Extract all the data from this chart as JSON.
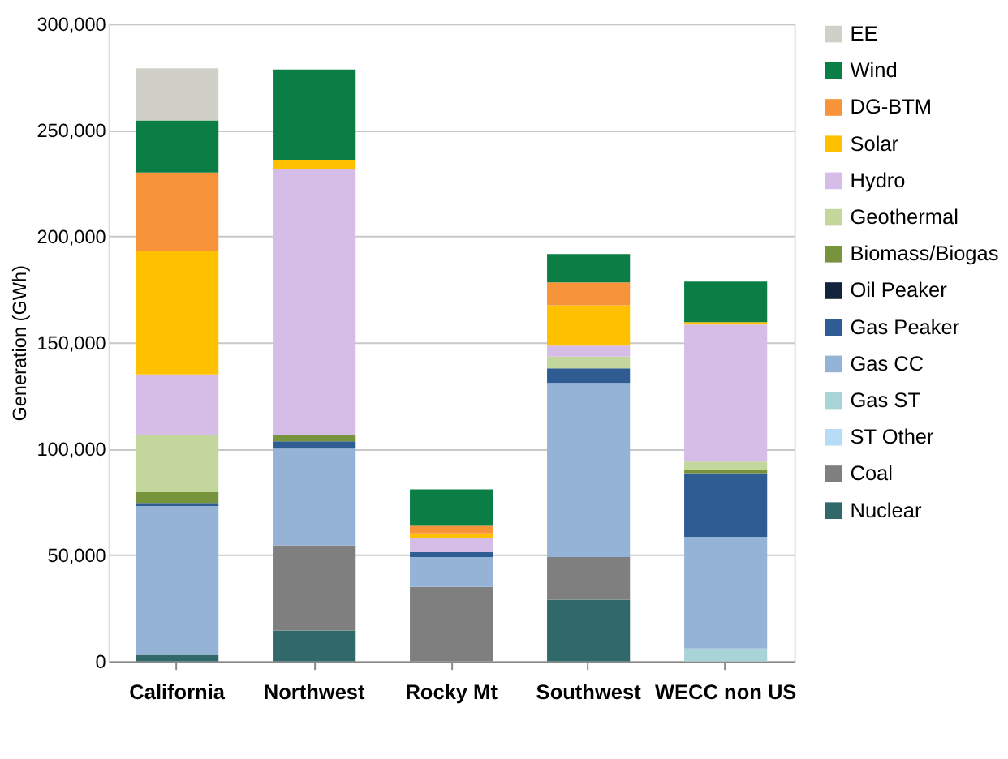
{
  "chart_data": {
    "type": "bar",
    "stacked": true,
    "ylabel": "Generation (GWh)",
    "categories": [
      "California",
      "Northwest",
      "Rocky Mt",
      "Southwest",
      "WECC non US"
    ],
    "ylim": [
      0,
      300000
    ],
    "yticks": [
      0,
      {
        "value": 50000,
        "label": "50,000"
      },
      {
        "value": 100000,
        "label": "100,000"
      },
      {
        "value": 150000,
        "label": "150,000"
      },
      {
        "value": 200000,
        "label": "200,000"
      },
      {
        "value": 250000,
        "label": "250,000"
      },
      {
        "value": 300000,
        "label": "300,000"
      }
    ],
    "grid": "y",
    "legend": "right",
    "series": [
      {
        "name": "Nuclear",
        "color": "#31686a",
        "values": [
          3000,
          14500,
          0,
          29000,
          0
        ]
      },
      {
        "name": "Coal",
        "color": "#7f7f7f",
        "values": [
          0,
          40000,
          35000,
          20000,
          0
        ]
      },
      {
        "name": "ST Other",
        "color": "#b7dcf5",
        "values": [
          0,
          0,
          0,
          0,
          0
        ]
      },
      {
        "name": "Gas ST",
        "color": "#a8d4d8",
        "values": [
          0,
          0,
          0,
          0,
          6000
        ]
      },
      {
        "name": "Gas CC",
        "color": "#95b3d7",
        "values": [
          70000,
          45500,
          14000,
          82000,
          52500
        ]
      },
      {
        "name": "Gas Peaker",
        "color": "#2f5c93",
        "values": [
          1500,
          3500,
          2300,
          6800,
          30000
        ]
      },
      {
        "name": "Oil Peaker",
        "color": "#13233e",
        "values": [
          0,
          0,
          0,
          0,
          0
        ]
      },
      {
        "name": "Biomass/Biogas",
        "color": "#77933c",
        "values": [
          5000,
          3000,
          0,
          0,
          1700
        ]
      },
      {
        "name": "Geothermal",
        "color": "#c3d69b",
        "values": [
          27000,
          0,
          0,
          5600,
          3700
        ]
      },
      {
        "name": "Hydro",
        "color": "#d6bde8",
        "values": [
          28500,
          125000,
          6500,
          5100,
          64500
        ]
      },
      {
        "name": "Solar",
        "color": "#ffc000",
        "values": [
          58000,
          4500,
          2400,
          19000,
          1200
        ]
      },
      {
        "name": "DG-BTM",
        "color": "#f7943a",
        "values": [
          37000,
          0,
          3500,
          10800,
          0
        ]
      },
      {
        "name": "Wind",
        "color": "#0b7e45",
        "values": [
          24500,
          42500,
          17200,
          13300,
          19100
        ]
      },
      {
        "name": "EE",
        "color": "#d0d0c8",
        "values": [
          24500,
          0,
          0,
          0,
          0
        ]
      }
    ]
  }
}
